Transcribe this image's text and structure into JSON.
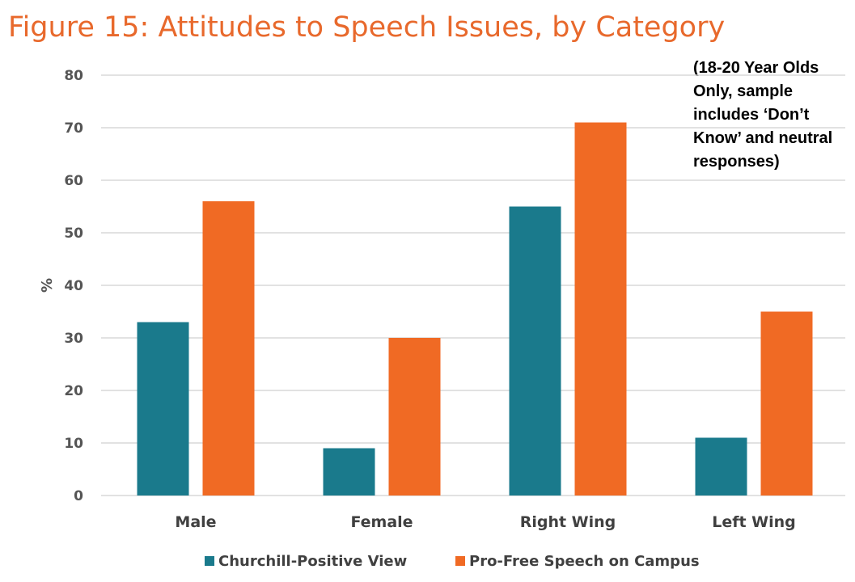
{
  "chart_data": {
    "type": "bar",
    "title": "Figure 15: Attitudes to Speech Issues, by Category",
    "note": "(18-20 Year Olds Only, sample includes ‘Don’t Know’ and neutral responses)",
    "categories": [
      "Male",
      "Female",
      "Right Wing",
      "Left Wing"
    ],
    "series": [
      {
        "name": "Churchill-Positive View",
        "color": "#1a7a8c",
        "values": [
          33,
          9,
          55,
          11
        ]
      },
      {
        "name": "Pro-Free Speech on Campus",
        "color": "#f06a24",
        "values": [
          56,
          30,
          71,
          35
        ]
      }
    ],
    "xlabel": "",
    "ylabel": "%",
    "ylim": [
      0,
      80
    ],
    "yticks": [
      "0",
      "10",
      "20",
      "30",
      "40",
      "50",
      "60",
      "70",
      "80"
    ],
    "grid": true,
    "legend_position": "bottom",
    "title_color": "#e8692c"
  }
}
